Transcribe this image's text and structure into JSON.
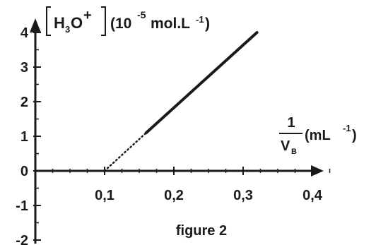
{
  "chart_data": {
    "type": "line",
    "title": "",
    "caption": "figure 2",
    "ylabel": {
      "species": "H",
      "species_sub": "3",
      "species_o": "O",
      "charge": "+",
      "unit_open": "(10",
      "unit_exp": "-5",
      "unit_mid": "mol.L",
      "unit_exp2": "-1",
      "unit_close": ")"
    },
    "xlabel": {
      "numerator": "1",
      "denominator": "V",
      "denominator_sub": "B",
      "unit_open": "(mL",
      "unit_exp": "-1",
      "unit_close": ")"
    },
    "xlim": [
      0,
      0.45
    ],
    "ylim": [
      -2,
      4.5
    ],
    "x_ticks": [
      "0,1",
      "0,2",
      "0,3",
      "0,4"
    ],
    "x_tick_values": [
      0.1,
      0.2,
      0.3,
      0.4
    ],
    "y_ticks": [
      "4",
      "3",
      "2",
      "1",
      "0",
      "-1",
      "-2"
    ],
    "y_tick_values": [
      4,
      3,
      2,
      1,
      0,
      -1,
      -2
    ],
    "series": [
      {
        "style": "solid",
        "x": [
          0.16,
          0.32
        ],
        "y": [
          1.1,
          4.0
        ]
      },
      {
        "style": "dotted",
        "x": [
          0.1,
          0.16
        ],
        "y": [
          0.0,
          1.1
        ]
      }
    ],
    "grid": false,
    "legend": "none",
    "colors": {
      "ink": "#1a1a1a",
      "background": "#ffffff"
    }
  }
}
